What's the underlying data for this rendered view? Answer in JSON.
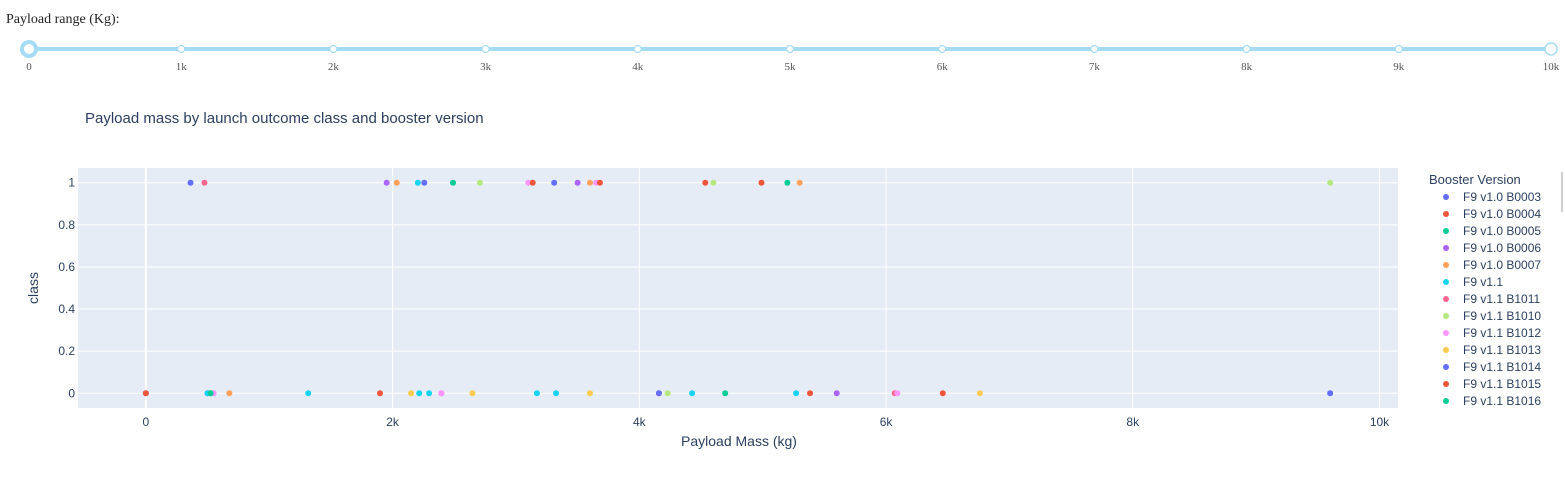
{
  "slider": {
    "label": "Payload range (Kg):",
    "min": 0,
    "max": 10000,
    "value": [
      0,
      10000
    ],
    "tick_labels": [
      "0",
      "1k",
      "2k",
      "3k",
      "4k",
      "5k",
      "6k",
      "7k",
      "8k",
      "9k",
      "10k"
    ],
    "color": "#a6dcf3"
  },
  "chart_data": {
    "type": "scatter",
    "title": "Payload mass by launch outcome class and booster version",
    "xlabel": "Payload Mass (kg)",
    "ylabel": "class",
    "xlim": [
      -550,
      10150
    ],
    "ylim": [
      -0.07,
      1.07
    ],
    "xticks": [
      0,
      2000,
      4000,
      6000,
      8000,
      10000
    ],
    "xtick_labels": [
      "0",
      "2k",
      "4k",
      "6k",
      "8k",
      "10k"
    ],
    "yticks": [
      0,
      0.2,
      0.4,
      0.6,
      0.8,
      1
    ],
    "ytick_labels": [
      "0",
      "0.2",
      "0.4",
      "0.6",
      "0.8",
      "1"
    ],
    "grid": true,
    "plot_bgcolor": "#e5ecf6",
    "legend_title": "Booster Version",
    "legend_position": "right",
    "series": [
      {
        "name": "F9 v1.0  B0003",
        "color": "#636efa",
        "points": [
          [
            0,
            0
          ]
        ]
      },
      {
        "name": "F9 v1.0  B0004",
        "color": "#ef553b",
        "points": [
          [
            0,
            0
          ]
        ]
      },
      {
        "name": "F9 v1.0  B0005",
        "color": "#00cc96",
        "points": [
          [
            525,
            0
          ]
        ]
      },
      {
        "name": "F9 v1.0  B0006",
        "color": "#ab63fa",
        "points": [
          [
            500,
            0
          ]
        ]
      },
      {
        "name": "F9 v1.0  B0007",
        "color": "#ffa15a",
        "points": [
          [
            677,
            0
          ]
        ]
      },
      {
        "name": "F9 v1.1",
        "color": "#19d3f3",
        "points": [
          [
            500,
            0
          ],
          [
            1316,
            0
          ],
          [
            2296,
            0
          ],
          [
            3170,
            0
          ],
          [
            3325,
            0
          ],
          [
            4428,
            0
          ],
          [
            5271,
            0
          ],
          [
            2216,
            0
          ]
        ]
      },
      {
        "name": "F9 v1.1 B1011",
        "color": "#ff6692",
        "points": [
          [
            475,
            1
          ],
          [
            2395,
            0
          ],
          [
            4159,
            0
          ],
          [
            6070,
            0
          ]
        ]
      },
      {
        "name": "F9 v1.1 B1010",
        "color": "#b6e880",
        "points": [
          [
            2708,
            1
          ],
          [
            4230,
            0
          ],
          [
            4600,
            1
          ],
          [
            9600,
            1
          ],
          [
            2150,
            0
          ]
        ]
      },
      {
        "name": "F9 v1.1 B1012",
        "color": "#ff97ff",
        "points": [
          [
            3100,
            1
          ],
          [
            3650,
            1
          ],
          [
            2395,
            0
          ],
          [
            6092,
            0
          ],
          [
            550,
            0
          ]
        ]
      },
      {
        "name": "F9 v1.1 B1013",
        "color": "#fecb52",
        "points": [
          [
            2150,
            0
          ],
          [
            2647,
            0
          ],
          [
            3600,
            0
          ],
          [
            6761,
            0
          ]
        ]
      },
      {
        "name": "F9 v1.1 B1014",
        "color": "#636efa",
        "points": [
          [
            362,
            1
          ],
          [
            2257,
            1
          ],
          [
            3310,
            1
          ],
          [
            4159,
            0
          ],
          [
            9600,
            0
          ]
        ]
      },
      {
        "name": "F9 v1.1 B1015",
        "color": "#ef553b",
        "points": [
          [
            1898,
            0
          ],
          [
            3136,
            1
          ],
          [
            3681,
            1
          ],
          [
            4535,
            1
          ],
          [
            4990,
            1
          ],
          [
            5384,
            0
          ],
          [
            6460,
            0
          ]
        ]
      },
      {
        "name": "F9 v1.1 B1016",
        "color": "#00cc96",
        "points": [
          [
            2490,
            1
          ],
          [
            4696,
            0
          ],
          [
            5200,
            1
          ],
          [
            525,
            0
          ]
        ]
      },
      {
        "name": "",
        "color": "#ab63fa",
        "points": [
          [
            1952,
            1
          ],
          [
            3500,
            1
          ],
          [
            5600,
            0
          ]
        ]
      },
      {
        "name": "",
        "color": "#ffa15a",
        "points": [
          [
            2034,
            1
          ],
          [
            3600,
            1
          ],
          [
            5300,
            1
          ]
        ]
      },
      {
        "name": "",
        "color": "#19d3f3",
        "points": [
          [
            2205,
            1
          ]
        ]
      }
    ]
  }
}
